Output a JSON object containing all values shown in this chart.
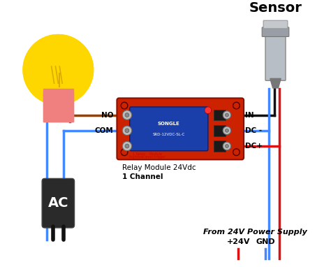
{
  "bg_color": "#ffffff",
  "bulb_color": "#FFD700",
  "bulb_base_color": "#F08080",
  "relay_board_color": "#cc2200",
  "relay_blue_color": "#1a3faa",
  "ac_color": "#2a2a2a",
  "wire_blue": "#4488ff",
  "wire_red": "#dd1111",
  "wire_brown": "#8B4513",
  "wire_black": "#111111",
  "sensor_label": "Sensor",
  "relay_label1": "Relay Module 24Vdc",
  "relay_label2": "1 Channel",
  "power_label": "From 24V Power Supply",
  "plus24_label": "+24V",
  "gnd_label": "GND",
  "ac_label": "AC",
  "no_label": "NO",
  "com_label": "COM",
  "in_label": "IN",
  "dcminus_label": "DC -",
  "dcplus_label": "DC+"
}
